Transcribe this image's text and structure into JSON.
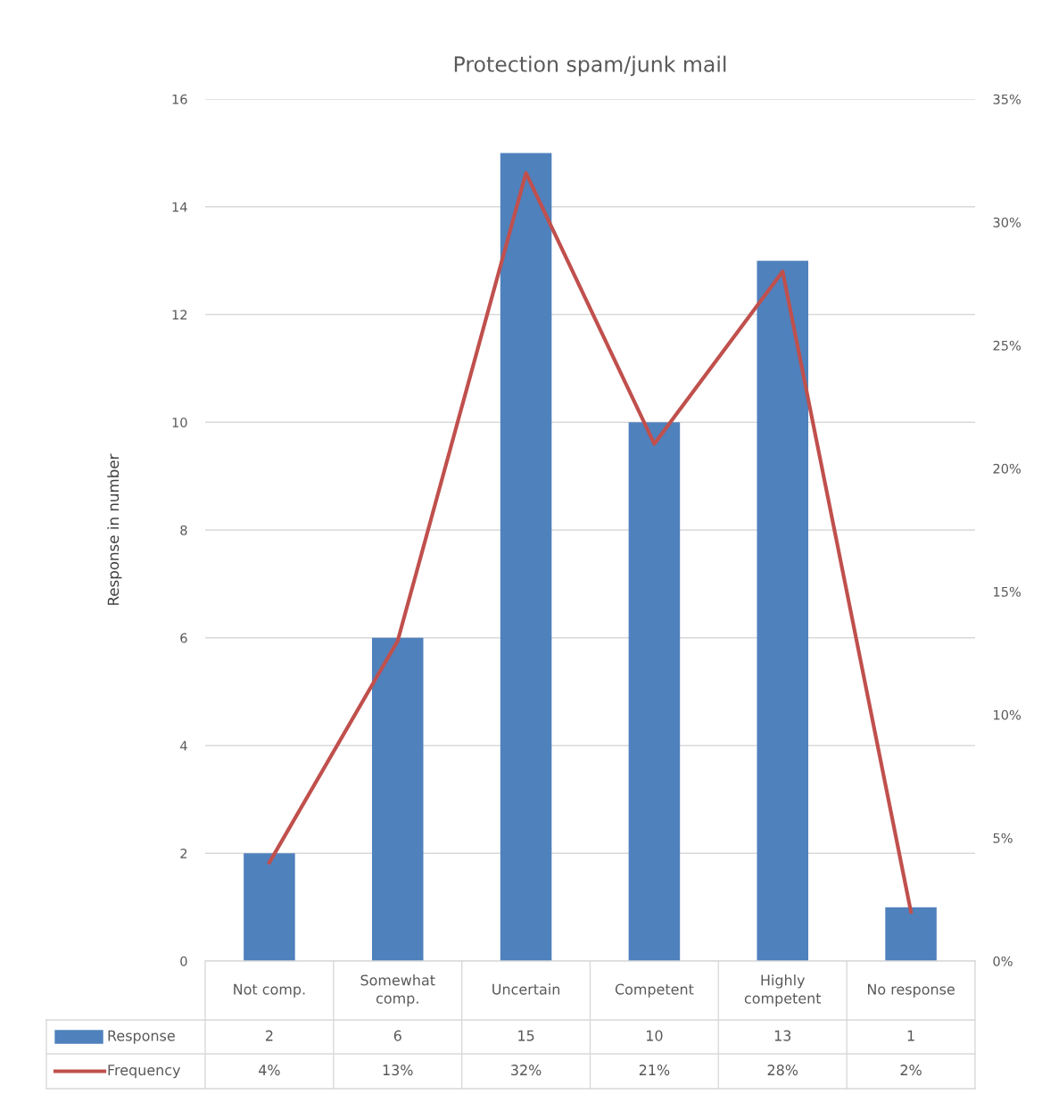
{
  "chart_data": {
    "type": "bar",
    "title": "Protection spam/junk mail",
    "ylabel": "Response in number",
    "categories": [
      "Not comp.",
      "Somewhat comp.",
      "Uncertain",
      "Competent",
      "Highly competent",
      "No response"
    ],
    "series": [
      {
        "name": "Response",
        "color": "#4f81bd",
        "values": [
          2,
          6,
          15,
          10,
          13,
          1
        ],
        "value_labels": [
          "2",
          "6",
          "15",
          "10",
          "13",
          "1"
        ]
      },
      {
        "name": "Frequency",
        "type": "line",
        "axis": "y2",
        "color": "#c0504d",
        "values": [
          4,
          13,
          32,
          21,
          28,
          2
        ],
        "value_labels": [
          "4%",
          "13%",
          "32%",
          "21%",
          "28%",
          "2%"
        ]
      }
    ],
    "ylim": [
      0,
      16
    ],
    "yticks": [
      0,
      2,
      4,
      6,
      8,
      10,
      12,
      14,
      16
    ],
    "y2lim": [
      0,
      35
    ],
    "y2ticks": [
      {
        "value": 0,
        "label": "0%"
      },
      {
        "value": 5,
        "label": "5%"
      },
      {
        "value": 10,
        "label": "10%"
      },
      {
        "value": 15,
        "label": "15%"
      },
      {
        "value": 20,
        "label": "20%"
      },
      {
        "value": 25,
        "label": "25%"
      },
      {
        "value": 30,
        "label": "30%"
      },
      {
        "value": 35,
        "label": "35%"
      }
    ],
    "grid": "y",
    "legend": "bottom",
    "marker": "none",
    "line_style": "solid"
  }
}
